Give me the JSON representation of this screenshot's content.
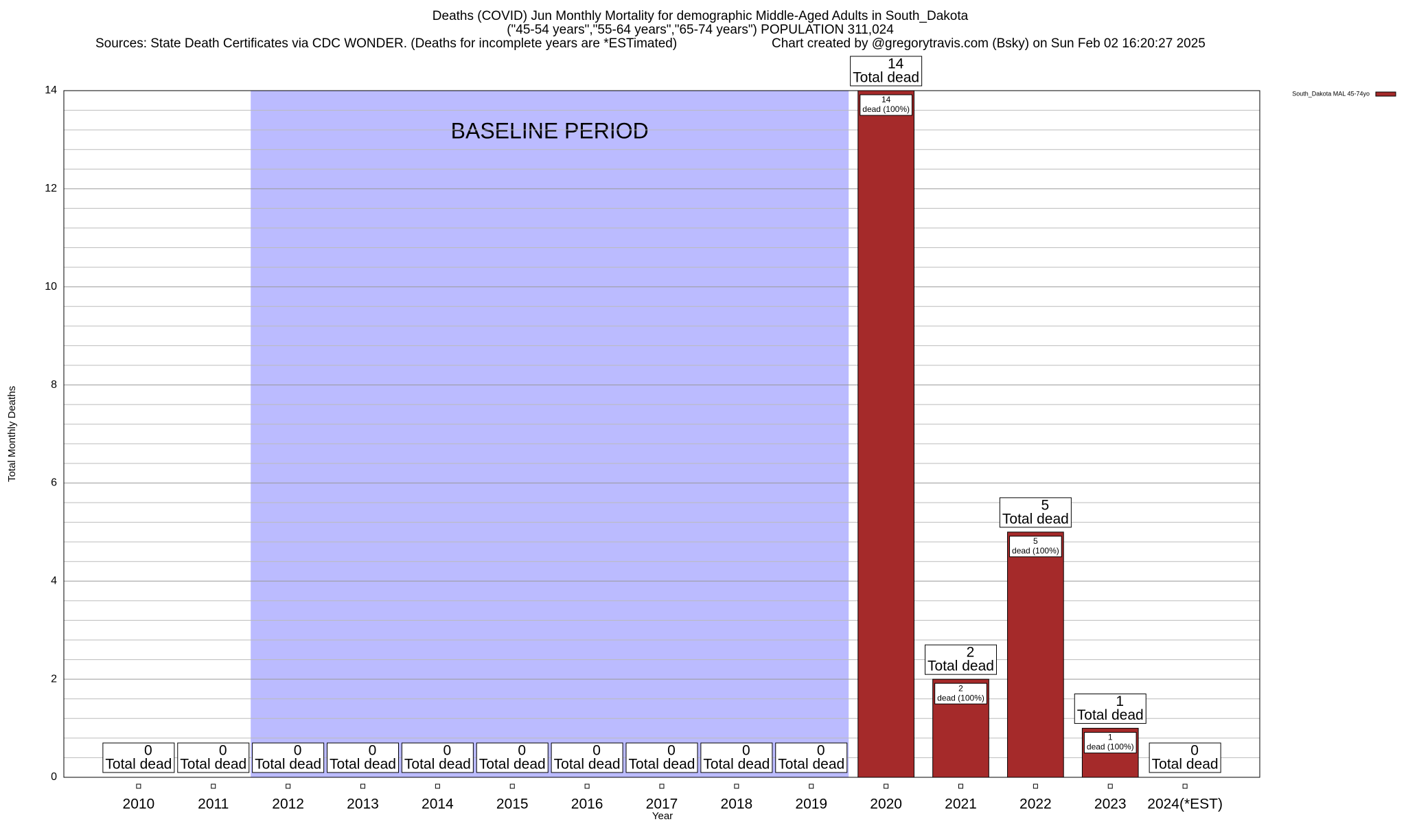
{
  "chart_data": {
    "type": "bar",
    "title": "Deaths (COVID) Jun Monthly Mortality for demographic Middle-Aged Adults in South_Dakota",
    "subtitle": "(\"45-54 years\",\"55-64 years\",\"65-74 years\") POPULATION 311,024",
    "sources": "Sources: State Death Certificates via CDC WONDER. (Deaths for incomplete years are *ESTimated)",
    "credit": "Chart created by @gregorytravis.com (Bsky) on Sun Feb 02 16:20:27 2025",
    "x_label": "Year",
    "y_label": "Total Monthly Deaths",
    "categories": [
      "2010",
      "2011",
      "2012",
      "2013",
      "2014",
      "2015",
      "2016",
      "2017",
      "2018",
      "2019",
      "2020",
      "2021",
      "2022",
      "2023",
      "2024(*EST)"
    ],
    "series": [
      {
        "name": "South_Dakota MAL 45-74yo",
        "color": "#a52a2a",
        "values": [
          0,
          0,
          0,
          0,
          0,
          0,
          0,
          0,
          0,
          0,
          14,
          2,
          5,
          1,
          0
        ]
      }
    ],
    "total_label": "Total dead",
    "segment_label": "dead (100%)",
    "baseline": {
      "label": "BASELINE PERIOD",
      "from": "2012",
      "to": "2019",
      "color": "#bbbbff"
    },
    "ylim": [
      0,
      14
    ],
    "yticks": [
      0,
      2,
      4,
      6,
      8,
      10,
      12,
      14
    ],
    "minor_yticks": [
      0.4,
      0.8,
      1.2,
      1.6,
      2.4,
      2.8,
      3.2,
      3.6,
      4.4,
      4.8,
      5.2,
      5.6,
      6.4,
      6.8,
      7.2,
      7.6,
      8.4,
      8.8,
      9.2,
      9.6,
      10.4,
      10.8,
      11.2,
      11.6,
      12.4,
      12.8,
      13.2,
      13.6
    ],
    "grid": true,
    "legend": "top-right"
  }
}
